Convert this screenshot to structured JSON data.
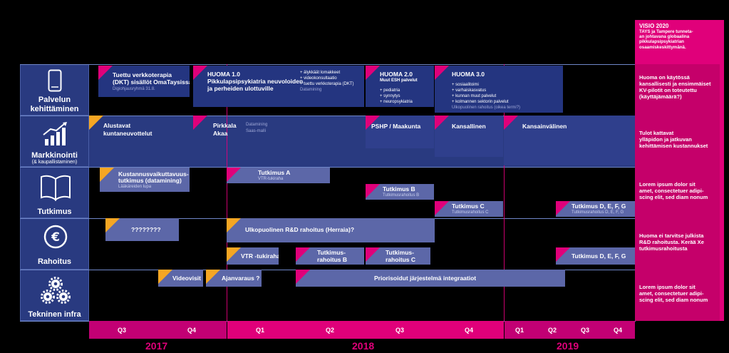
{
  "vision": {
    "title": "VISIO 2020",
    "text": [
      "TAYS ja Tampere tunneta-",
      "an johtavana globaalina",
      "pikkulapsipsykiatrian",
      "osaamiskeskittymänä."
    ]
  },
  "lanes": [
    {
      "label": "Palvelun",
      "label2": "kehittäminen",
      "icon": "smartphone-icon"
    },
    {
      "label": "Markkinointi",
      "sub": "(& kaupallistaminen)",
      "icon": "growth-chart-icon"
    },
    {
      "label": "Tutkimus",
      "icon": "open-book-icon"
    },
    {
      "label": "Rahoitus",
      "icon": "euro-coin-icon"
    },
    {
      "label": "Tekninen infra",
      "icon": "gears-icon"
    }
  ],
  "palvelu": {
    "dkt": {
      "title1": "Tuettu verkkoterapia",
      "title2": "(DKT) sisällöt OmaTaysissa",
      "sub": "Digiohjausryhmä 31.8."
    },
    "h1": {
      "title1": "HUOMA 1.0",
      "title2": "Pikkulapsipsykiatria neuvoloiden",
      "title3": "ja perheiden ulottuville",
      "bullets": [
        "+ älykkäät lomakkeet",
        "+ videokonsultaatio",
        "+ tuettu verkkoterapia (DKT)"
      ],
      "sub": "Datamining"
    },
    "h2": {
      "title1": "HUOMA 2.0",
      "title2": "Muut ESH palvelut",
      "bullets": [
        "+ pediatria",
        "+ synnytys",
        "+ neuropsykiatria"
      ]
    },
    "h3": {
      "title1": "HUOMA 3.0",
      "bullets": [
        "+ sosiaalitoimi",
        "+ varhaiskasvatus",
        "+ kunnan muut palvelut",
        "+ kolmannen sektorin palvelut"
      ],
      "sub": "Ulkopuolinen rahoitus (oikea termi?)"
    }
  },
  "markkinointi": {
    "a": {
      "line1": "Alustavat",
      "line2": "kuntaneuvottelut"
    },
    "b": {
      "line1": "Pirkkala",
      "line2": "Akaa",
      "sub1": "Datamining",
      "sub2": "Saas-malli"
    },
    "c": "PSHP / Maakunta",
    "d": "Kansallinen",
    "e": "Kansainvälinen"
  },
  "tutkimus": {
    "k": {
      "line1": "Kustannusvaikuttavuus-",
      "line2": "tutkimus (datamining)",
      "sub": "Lääkäreiden lupa"
    },
    "a": {
      "title": "Tutkimus A",
      "sub": "VTR-tukiraha"
    },
    "b": {
      "title": "Tutkimus B",
      "sub": "Tutkimusrahoitus B"
    },
    "c": {
      "title": "Tutkimus C",
      "sub": "Tutkimusrahoitus C"
    },
    "d": {
      "title": "Tutkimus D, E, F, G",
      "sub": "Tutkimusrahoitus D, E, F, G"
    }
  },
  "rahoitus": {
    "q": "????????",
    "ulk": "Ulkopuolinen R&D rahoitus (Herraia)?",
    "vtr": "VTR -tukiraha",
    "b1": "Tutkimus-",
    "b2": "rahoitus B",
    "c1": "Tutkimus-",
    "c2": "rahoitus C",
    "d": "Tutkimus D, E, F, G"
  },
  "infra": {
    "video": "Videovisit",
    "ajan": "Ajanvaraus ?",
    "prio": "Priorisoidut järjestelmä integraatiot"
  },
  "side": [
    [
      "Huoma on käytössä",
      "kansallisesti ja ensimmäiset",
      "KV-pilotit on toteutettu",
      "(käyttäjämäärä?)"
    ],
    [
      "Tulot kattavat",
      "ylläpidon ja jatkuvan",
      "kehittämisen kustannukset"
    ],
    [
      "Lorem ipsum dolor sit",
      "amet, consectetuer adipi-",
      "scing elit, sed diam nonum"
    ],
    [
      "Huoma ei tarvitse julkista",
      "R&D rahoitusta. Kerää Xe",
      "tutkimusrahoitusta"
    ],
    [
      "Lorem ipsum dolor sit",
      "amet, consectetuer adipi-",
      "scing elit, sed diam nonum"
    ]
  ],
  "quarters": [
    "Q3",
    "Q4",
    "Q1",
    "Q2",
    "Q3",
    "Q4",
    "Q1",
    "Q2",
    "Q3",
    "Q4"
  ],
  "years": [
    "2017",
    "2018",
    "2019"
  ]
}
